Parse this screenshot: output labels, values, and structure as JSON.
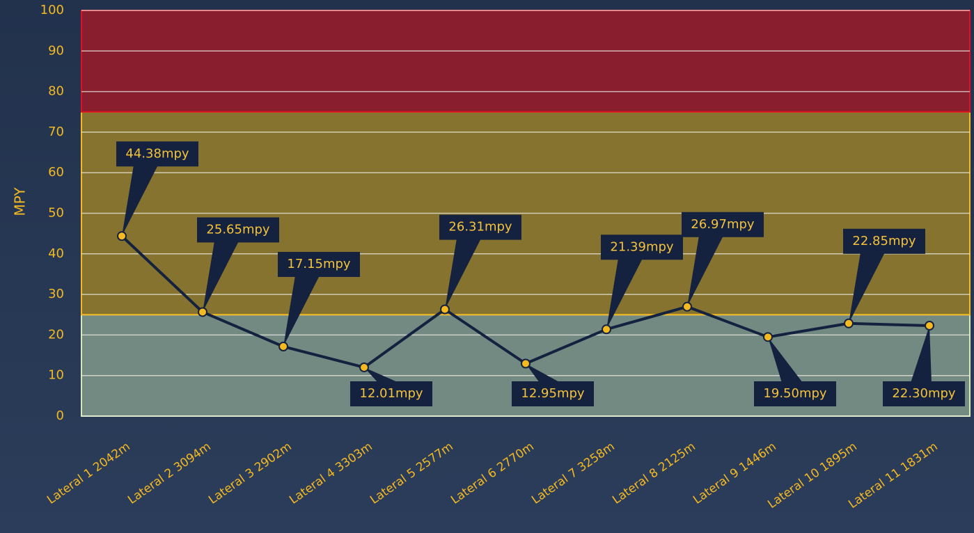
{
  "chart_data": {
    "type": "line",
    "y_label": "MPY",
    "categories": [
      "Lateral 1 2042m",
      "Lateral 2 3094m",
      "Lateral 3 2902m",
      "Lateral 4 3303m",
      "Lateral 5 2577m",
      "Lateral 6 2770m",
      "Lateral 7 3258m",
      "Lateral 8 2125m",
      "Lateral 9 1446m",
      "Lateral 10 1895m",
      "Lateral 11 1831m"
    ],
    "values": [
      44.38,
      25.65,
      17.15,
      12.01,
      26.31,
      12.95,
      21.39,
      26.97,
      19.5,
      22.85,
      22.3
    ],
    "value_labels": [
      "44.38mpy",
      "25.65mpy",
      "17.15mpy",
      "12.01mpy",
      "26.31mpy",
      "12.95mpy",
      "21.39mpy",
      "26.97mpy",
      "19.50mpy",
      "22.85mpy",
      "22.30mpy"
    ],
    "color": "#14223f",
    "marker_color": "#f5b921",
    "ylim": [
      0,
      100
    ],
    "yticks": [
      0,
      10,
      20,
      30,
      40,
      50,
      60,
      70,
      80,
      90,
      100
    ],
    "grid": true,
    "bands": [
      {
        "from": 0,
        "to": 25,
        "color": "#738a83",
        "edge": "#d8e8b8"
      },
      {
        "from": 25,
        "to": 75,
        "color": "#86732f",
        "edge": "#f5b921"
      },
      {
        "from": 75,
        "to": 100,
        "color": "#891e2e",
        "edge": "#e01020"
      }
    ]
  }
}
